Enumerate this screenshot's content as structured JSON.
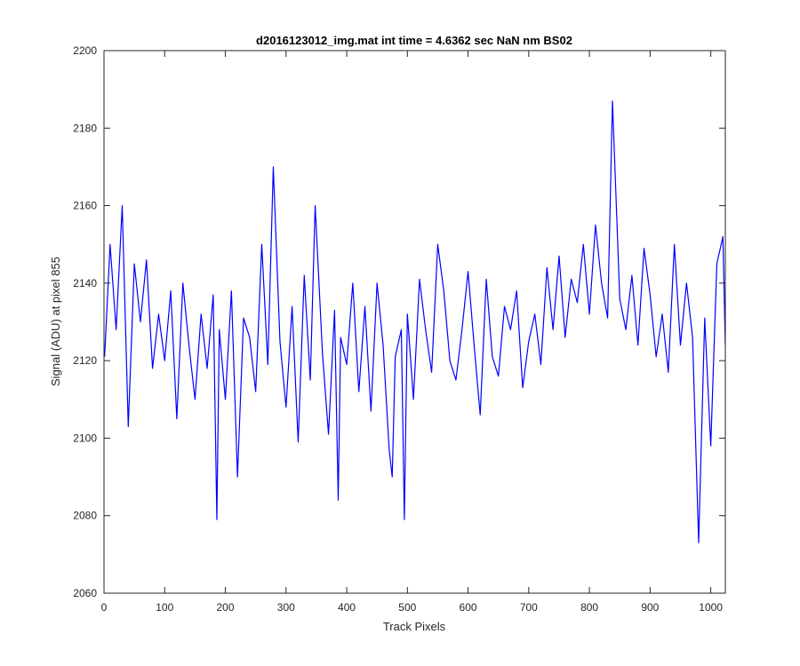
{
  "chart_data": {
    "type": "line",
    "title": "d2016123012_img.mat int time = 4.6362 sec  NaN nm BS02",
    "xlabel": "Track Pixels",
    "ylabel": "Signal (ADU) at pixel 855",
    "xlim": [
      0,
      1024
    ],
    "ylim": [
      2060,
      2200
    ],
    "xticks": [
      0,
      100,
      200,
      300,
      400,
      500,
      600,
      700,
      800,
      900,
      1000
    ],
    "yticks": [
      2060,
      2080,
      2100,
      2120,
      2140,
      2160,
      2180,
      2200
    ],
    "grid": false,
    "legend": "none",
    "series": [
      {
        "color": "#0000ff",
        "x": [
          1,
          10,
          20,
          30,
          40,
          50,
          60,
          70,
          80,
          90,
          100,
          110,
          120,
          130,
          140,
          150,
          160,
          170,
          180,
          186,
          190,
          200,
          210,
          220,
          230,
          240,
          250,
          260,
          270,
          279,
          290,
          300,
          310,
          320,
          330,
          340,
          348,
          360,
          370,
          380,
          386,
          390,
          400,
          410,
          420,
          430,
          440,
          450,
          460,
          470,
          475,
          480,
          490,
          495,
          500,
          510,
          520,
          530,
          540,
          550,
          560,
          570,
          580,
          590,
          600,
          610,
          620,
          630,
          640,
          650,
          660,
          670,
          680,
          690,
          700,
          710,
          720,
          730,
          740,
          750,
          760,
          770,
          780,
          790,
          800,
          810,
          820,
          830,
          838,
          850,
          860,
          870,
          880,
          890,
          900,
          910,
          920,
          930,
          940,
          950,
          960,
          970,
          980,
          990,
          1000,
          1010,
          1020,
          1024
        ],
        "y": [
          2121,
          2150,
          2128,
          2160,
          2103,
          2145,
          2130,
          2146,
          2118,
          2132,
          2120,
          2138,
          2105,
          2140,
          2124,
          2110,
          2132,
          2118,
          2137,
          2079,
          2128,
          2110,
          2138,
          2090,
          2131,
          2126,
          2112,
          2150,
          2119,
          2170,
          2125,
          2108,
          2134,
          2099,
          2142,
          2115,
          2160,
          2122,
          2101,
          2133,
          2084,
          2126,
          2119,
          2140,
          2112,
          2134,
          2107,
          2140,
          2124,
          2097,
          2090,
          2121,
          2128,
          2079,
          2132,
          2110,
          2141,
          2128,
          2117,
          2150,
          2138,
          2120,
          2115,
          2128,
          2143,
          2124,
          2106,
          2141,
          2121,
          2116,
          2134,
          2128,
          2138,
          2113,
          2125,
          2132,
          2119,
          2144,
          2128,
          2147,
          2126,
          2141,
          2135,
          2150,
          2132,
          2155,
          2140,
          2131,
          2187,
          2136,
          2128,
          2142,
          2124,
          2149,
          2137,
          2121,
          2132,
          2117,
          2150,
          2124,
          2140,
          2126,
          2073,
          2131,
          2098,
          2145,
          2152,
          2124
        ]
      }
    ]
  }
}
